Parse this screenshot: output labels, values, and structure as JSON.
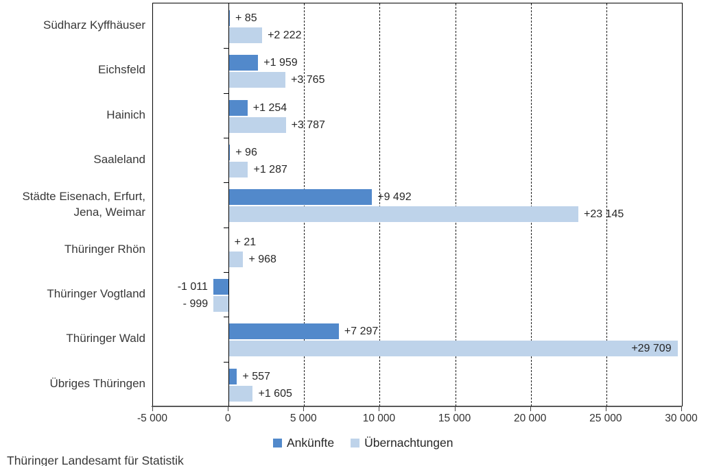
{
  "chart_data": {
    "type": "bar",
    "orientation": "horizontal",
    "title": "",
    "xlabel": "",
    "ylabel": "",
    "categories": [
      "Südharz Kyffhäuser",
      "Eichsfeld",
      "Hainich",
      "Saaleland",
      "Städte Eisenach, Erfurt,\nJena, Weimar",
      "Thüringer Rhön",
      "Thüringer Vogtland",
      "Thüringer Wald",
      "Übriges Thüringen"
    ],
    "series": [
      {
        "name": "Ankünfte",
        "color": "#5289cb",
        "values": [
          85,
          1959,
          1254,
          96,
          9492,
          21,
          -1011,
          7297,
          557
        ],
        "labels": [
          "+ 85",
          "+1 959",
          "+1 254",
          "+ 96",
          "+9 492",
          "+ 21",
          "-1 011",
          "+7 297",
          "+ 557"
        ],
        "label_inside": [
          false,
          false,
          false,
          false,
          false,
          false,
          false,
          false,
          false
        ]
      },
      {
        "name": "Übernachtungen",
        "color": "#bed3ea",
        "values": [
          2222,
          3765,
          3787,
          1287,
          23145,
          968,
          -999,
          29709,
          1605
        ],
        "labels": [
          "+2 222",
          "+3 765",
          "+3 787",
          "+1 287",
          "+23 145",
          "+ 968",
          "- 999",
          "+29 709",
          "+1 605"
        ],
        "label_inside": [
          false,
          false,
          false,
          false,
          false,
          false,
          false,
          true,
          false
        ]
      }
    ],
    "xlim": [
      -5000,
      30000
    ],
    "x_ticks": [
      -5000,
      0,
      5000,
      10000,
      15000,
      20000,
      25000,
      30000
    ],
    "x_tick_labels": [
      "-5 000",
      "0",
      "5 000",
      "10 000",
      "15 000",
      "20 000",
      "25 000",
      "30 000"
    ],
    "grid": "vertical dashed lines every 5 000, solid line at 0",
    "legend_position": "bottom"
  },
  "source": "Thüringer Landesamt für Statistik"
}
